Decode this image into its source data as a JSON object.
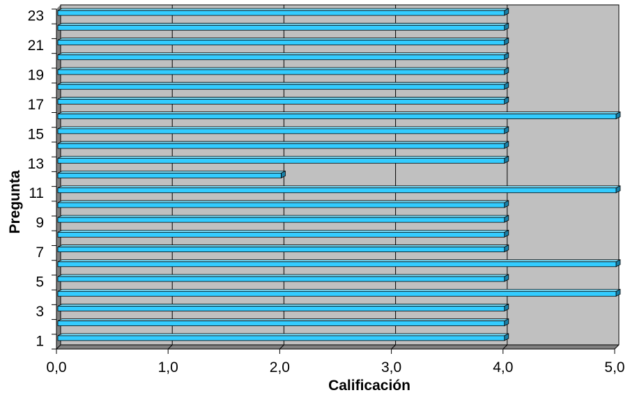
{
  "chart_data": {
    "type": "bar",
    "orientation": "horizontal",
    "style": "3d",
    "title": "",
    "xlabel": "Calificación",
    "ylabel": "Pregunta",
    "xlim": [
      0,
      5
    ],
    "x_ticks": [
      "0,0",
      "1,0",
      "2,0",
      "3,0",
      "4,0",
      "5,0"
    ],
    "y_ticks": [
      "1",
      "3",
      "5",
      "7",
      "9",
      "11",
      "13",
      "15",
      "17",
      "19",
      "21",
      "23"
    ],
    "categories": [
      1,
      2,
      3,
      4,
      5,
      6,
      7,
      8,
      9,
      10,
      11,
      12,
      13,
      14,
      15,
      16,
      17,
      18,
      19,
      20,
      21,
      22,
      23
    ],
    "values": [
      4,
      4,
      4,
      5,
      4,
      5,
      4,
      4,
      4,
      4,
      5,
      2,
      4,
      4,
      4,
      5,
      4,
      4,
      4,
      4,
      4,
      4,
      4
    ],
    "grid": true,
    "legend": false,
    "colors": {
      "bar": "#33ccff",
      "bar_top": "#7fe3ff",
      "bar_side": "#1a7fa6",
      "plot_background": "#c0c0c0",
      "floor": "#808080",
      "gridline": "#000000"
    }
  }
}
